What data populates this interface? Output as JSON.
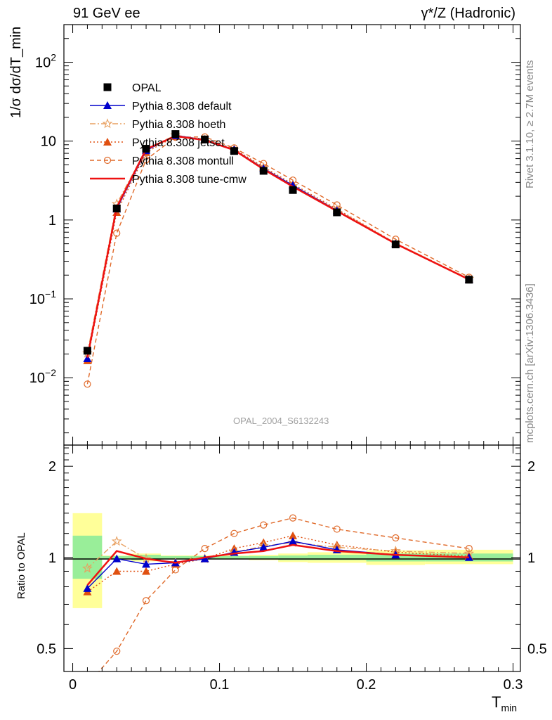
{
  "header": {
    "left": "91 GeV ee",
    "right": "γ*/Z (Hadronic)"
  },
  "side_labels": {
    "rivet": "Rivet 3.1.10, ≥ 2.7M events",
    "source": "mcplots.cern.ch [arXiv:1306.3436]"
  },
  "analysis_tag": "OPAL_2004_S6132243",
  "colors": {
    "data": "#000000",
    "default": "#0000cc",
    "hoeth": "#e8a060",
    "jetset": "#e05010",
    "montull": "#e06a2a",
    "tune_cmw": "#ee1111",
    "band_inner": "#99ee99",
    "band_outer": "#ffff99"
  },
  "chart_data": [
    {
      "type": "line",
      "panel": "main",
      "ylabel": "1/σ dσ/dT_min",
      "yscale": "log",
      "ylim": [
        0.0014,
        300
      ],
      "xlim": [
        -0.006,
        0.305
      ],
      "yticks": [
        {
          "value": 0.01,
          "base": "10",
          "exp": "−2"
        },
        {
          "value": 0.1,
          "base": "10",
          "exp": "−1"
        },
        {
          "value": 1,
          "base": "1",
          "exp": ""
        },
        {
          "value": 10,
          "base": "10",
          "exp": ""
        },
        {
          "value": 100,
          "base": "10",
          "exp": "2"
        }
      ],
      "x": [
        0.01,
        0.03,
        0.05,
        0.07,
        0.09,
        0.11,
        0.13,
        0.15,
        0.18,
        0.22,
        0.27
      ],
      "legend": [
        {
          "name": "OPAL",
          "key": "data"
        },
        {
          "name": "Pythia 8.308 default",
          "key": "default"
        },
        {
          "name": "Pythia 8.308 hoeth",
          "key": "hoeth"
        },
        {
          "name": "Pythia 8.308 jetset",
          "key": "jetset"
        },
        {
          "name": "Pythia 8.308 montull",
          "key": "montull"
        },
        {
          "name": "Pythia 8.308 tune-cmw",
          "key": "tune_cmw"
        }
      ],
      "series": [
        {
          "name": "OPAL",
          "key": "data",
          "values": [
            0.022,
            1.4,
            8.0,
            12.3,
            10.5,
            7.5,
            4.2,
            2.4,
            1.25,
            0.49,
            0.175
          ]
        },
        {
          "name": "Pythia 8.308 default",
          "key": "default",
          "values": [
            0.0175,
            1.38,
            7.6,
            11.8,
            10.4,
            7.8,
            4.5,
            2.75,
            1.32,
            0.5,
            0.176
          ]
        },
        {
          "name": "Pythia 8.308 hoeth",
          "key": "hoeth",
          "values": [
            0.0205,
            1.6,
            7.9,
            11.9,
            10.4,
            7.8,
            4.6,
            2.7,
            1.35,
            0.51,
            0.18
          ]
        },
        {
          "name": "Pythia 8.308 jetset",
          "key": "jetset",
          "values": [
            0.0165,
            1.25,
            7.2,
            11.5,
            10.6,
            8.0,
            4.7,
            2.85,
            1.38,
            0.51,
            0.178
          ]
        },
        {
          "name": "Pythia 8.308 montull",
          "key": "montull",
          "values": [
            0.0083,
            0.68,
            5.8,
            11.2,
            11.3,
            8.2,
            5.2,
            3.2,
            1.55,
            0.57,
            0.188
          ]
        },
        {
          "name": "Pythia 8.308 tune-cmw",
          "key": "tune_cmw",
          "values": [
            0.018,
            1.45,
            7.9,
            11.6,
            10.3,
            7.7,
            4.4,
            2.65,
            1.3,
            0.5,
            0.176
          ]
        }
      ]
    },
    {
      "type": "line",
      "panel": "ratio",
      "ylabel": "Ratio to OPAL",
      "xlabel": "T",
      "xlabel_sub": "min",
      "yscale": "log",
      "ylim": [
        0.42,
        2.35
      ],
      "xlim": [
        -0.006,
        0.305
      ],
      "yticks": [
        {
          "value": 0.5,
          "label": "0.5"
        },
        {
          "value": 1,
          "label": "1"
        },
        {
          "value": 2,
          "label": "2"
        }
      ],
      "xticks": [
        {
          "value": 0,
          "label": "0"
        },
        {
          "value": 0.1,
          "label": "0.1"
        },
        {
          "value": 0.2,
          "label": "0.2"
        },
        {
          "value": 0.3,
          "label": "0.3"
        }
      ],
      "x": [
        0.01,
        0.03,
        0.05,
        0.07,
        0.09,
        0.11,
        0.13,
        0.15,
        0.18,
        0.22,
        0.27
      ],
      "band_edges": [
        0,
        0.02,
        0.04,
        0.06,
        0.08,
        0.1,
        0.12,
        0.14,
        0.16,
        0.2,
        0.24,
        0.3
      ],
      "band_inner": [
        [
          0.85,
          1.18
        ],
        [
          0.99,
          1.01
        ],
        [
          0.98,
          1.02
        ],
        [
          0.99,
          1.01
        ],
        [
          0.99,
          1.01
        ],
        [
          0.99,
          1.01
        ],
        [
          0.99,
          1.01
        ],
        [
          0.98,
          1.015
        ],
        [
          0.98,
          1.02
        ],
        [
          0.97,
          1.03
        ],
        [
          0.97,
          1.03
        ]
      ],
      "band_outer": [
        [
          0.68,
          1.4
        ],
        [
          0.985,
          1.015
        ],
        [
          0.97,
          1.03
        ],
        [
          0.985,
          1.015
        ],
        [
          0.985,
          1.015
        ],
        [
          0.985,
          1.015
        ],
        [
          0.98,
          1.02
        ],
        [
          0.965,
          1.03
        ],
        [
          0.96,
          1.04
        ],
        [
          0.945,
          1.055
        ],
        [
          0.95,
          1.06
        ]
      ],
      "series": [
        {
          "name": "Pythia 8.308 default",
          "key": "default",
          "values": [
            0.79,
            0.99,
            0.95,
            0.96,
            0.99,
            1.04,
            1.08,
            1.13,
            1.06,
            1.02,
            1.0
          ]
        },
        {
          "name": "Pythia 8.308 hoeth",
          "key": "hoeth",
          "values": [
            0.92,
            1.13,
            0.99,
            0.96,
            0.99,
            1.04,
            1.09,
            1.12,
            1.08,
            1.05,
            1.03
          ]
        },
        {
          "name": "Pythia 8.308 jetset",
          "key": "jetset",
          "values": [
            0.77,
            0.9,
            0.9,
            0.95,
            0.99,
            1.07,
            1.12,
            1.18,
            1.1,
            1.04,
            1.01
          ]
        },
        {
          "name": "Pythia 8.308 montull",
          "key": "montull",
          "values": [
            0.38,
            0.49,
            0.72,
            0.91,
            1.07,
            1.2,
            1.28,
            1.35,
            1.24,
            1.16,
            1.07
          ]
        },
        {
          "name": "Pythia 8.308 tune-cmw",
          "key": "tune_cmw",
          "values": [
            0.81,
            1.05,
            0.99,
            0.96,
            1.0,
            1.03,
            1.05,
            1.1,
            1.05,
            1.02,
            1.0
          ]
        }
      ]
    }
  ]
}
